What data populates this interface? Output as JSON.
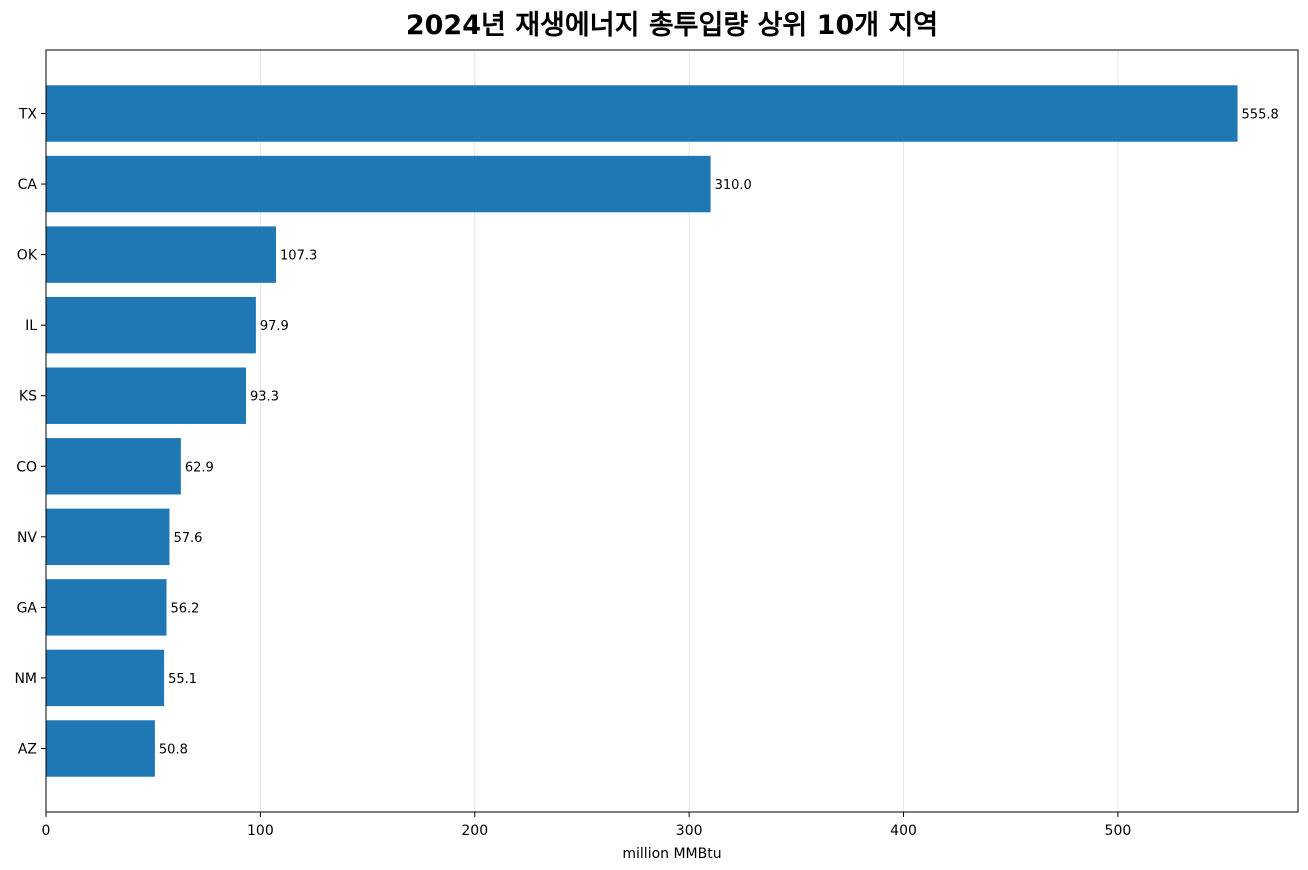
{
  "chart_data": {
    "type": "bar",
    "orientation": "horizontal",
    "title": "2024년 재생에너지 총투입량 상위 10개 지역",
    "xlabel": "million MMBtu",
    "ylabel": "",
    "categories": [
      "TX",
      "CA",
      "OK",
      "IL",
      "KS",
      "CO",
      "NV",
      "GA",
      "NM",
      "AZ"
    ],
    "values": [
      555.8,
      310.0,
      107.3,
      97.9,
      93.3,
      62.9,
      57.6,
      56.2,
      55.1,
      50.8
    ],
    "data_labels": [
      "555.8",
      "310.0",
      "107.3",
      "97.9",
      "93.3",
      "62.9",
      "57.6",
      "56.2",
      "55.1",
      "50.8"
    ],
    "xlim": [
      0,
      584
    ],
    "xticks": [
      0,
      100,
      200,
      300,
      400,
      500
    ],
    "xtick_labels": [
      "0",
      "100",
      "200",
      "300",
      "400",
      "500"
    ],
    "grid": "vertical",
    "legend": "none",
    "colors": {
      "bar": "#1f77b4",
      "grid": "#e6e6e6",
      "axis": "#000000",
      "text": "#000000"
    }
  }
}
